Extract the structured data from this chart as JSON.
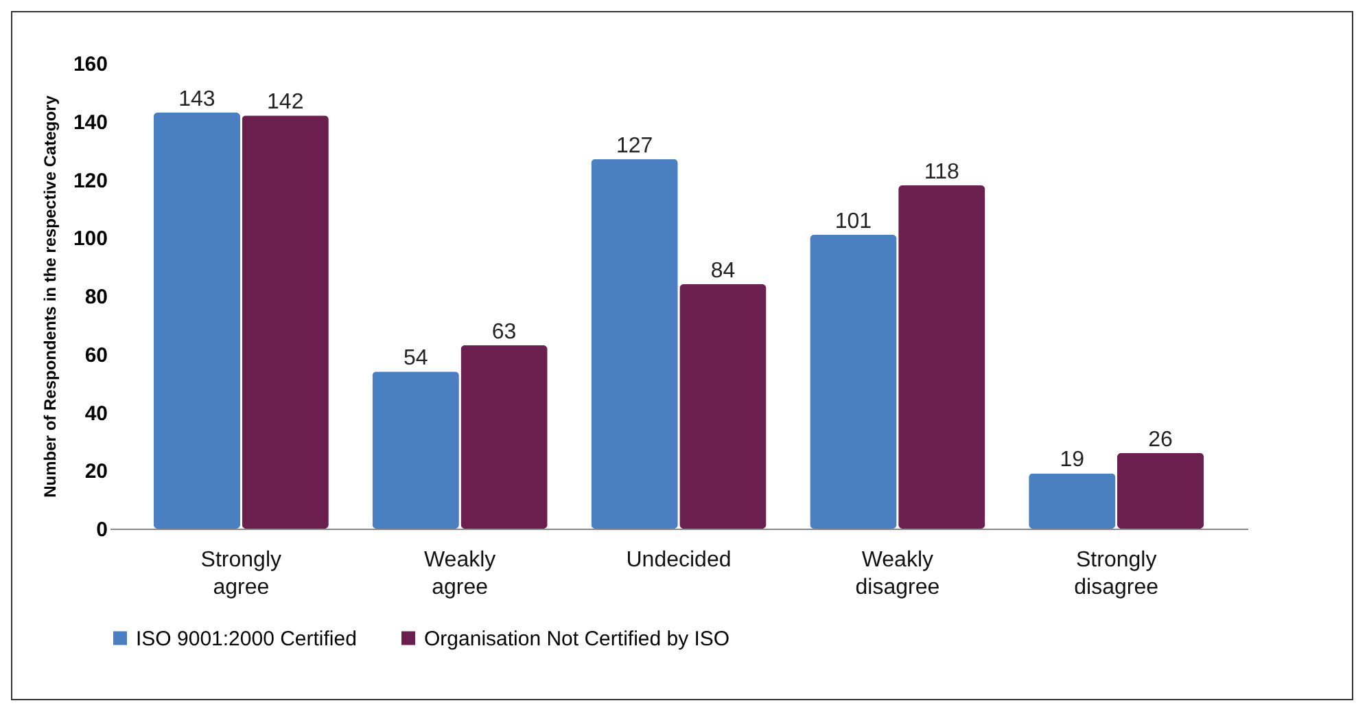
{
  "chart_data": {
    "type": "bar",
    "ylabel": "Number of Respondents in the respective Category",
    "categories": [
      "Strongly agree",
      "Weakly agree",
      "Undecided",
      "Weakly disagree",
      "Strongly disagree"
    ],
    "series": [
      {
        "name": "ISO 9001:2000 Certified",
        "color": "#4a7fc1",
        "values": [
          143,
          54,
          127,
          101,
          19
        ]
      },
      {
        "name": "Organisation Not Certified by ISO",
        "color": "#6b1f4f",
        "values": [
          142,
          63,
          84,
          118,
          26
        ]
      }
    ],
    "ylim": [
      0,
      160
    ],
    "yticks": [
      0,
      20,
      40,
      60,
      80,
      100,
      120,
      140,
      160
    ],
    "data_labels": true,
    "legend": "bottom",
    "grid": false
  }
}
